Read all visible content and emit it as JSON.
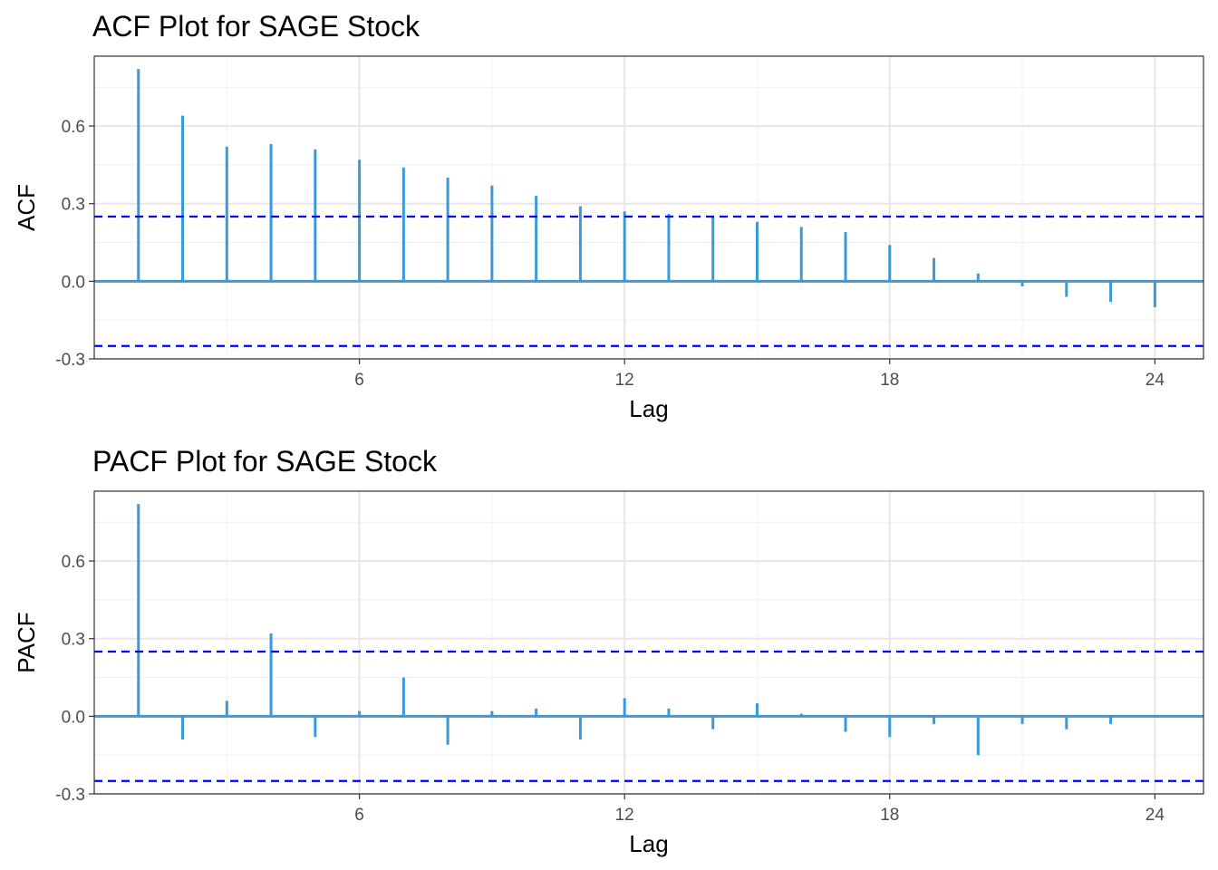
{
  "colors": {
    "bar": "#3a9ad9",
    "confidence_line": "#0000ff",
    "grid_major": "#e6e6e6",
    "grid_minor": "#f2f2f2",
    "panel_border": "#333333"
  },
  "chart_data": [
    {
      "type": "bar",
      "title": "ACF Plot for SAGE Stock",
      "xlabel": "Lag",
      "ylabel": "ACF",
      "xlim": [
        0,
        25.1
      ],
      "ylim": [
        -0.3,
        0.87
      ],
      "xticks": [
        6,
        12,
        18,
        24
      ],
      "xtick_labels": [
        "6",
        "12",
        "18",
        "24"
      ],
      "yticks": [
        -0.3,
        0,
        0.3,
        0.6
      ],
      "ytick_labels": [
        "-0.3",
        "0.0",
        "0.3",
        "0.6"
      ],
      "confidence_bounds": [
        0.25,
        -0.25
      ],
      "grid": true,
      "x": [
        1,
        2,
        3,
        4,
        5,
        6,
        7,
        8,
        9,
        10,
        11,
        12,
        13,
        14,
        15,
        16,
        17,
        18,
        19,
        20,
        21,
        22,
        23,
        24
      ],
      "values": [
        0.82,
        0.64,
        0.52,
        0.53,
        0.51,
        0.47,
        0.44,
        0.4,
        0.37,
        0.33,
        0.29,
        0.27,
        0.26,
        0.25,
        0.23,
        0.21,
        0.19,
        0.14,
        0.09,
        0.03,
        -0.02,
        -0.06,
        -0.08,
        -0.1
      ]
    },
    {
      "type": "bar",
      "title": "PACF Plot for SAGE Stock",
      "xlabel": "Lag",
      "ylabel": "PACF",
      "xlim": [
        0,
        25.1
      ],
      "ylim": [
        -0.3,
        0.87
      ],
      "xticks": [
        6,
        12,
        18,
        24
      ],
      "xtick_labels": [
        "6",
        "12",
        "18",
        "24"
      ],
      "yticks": [
        -0.3,
        0,
        0.3,
        0.6
      ],
      "ytick_labels": [
        "-0.3",
        "0.0",
        "0.3",
        "0.6"
      ],
      "confidence_bounds": [
        0.25,
        -0.25
      ],
      "grid": true,
      "x": [
        1,
        2,
        3,
        4,
        5,
        6,
        7,
        8,
        9,
        10,
        11,
        12,
        13,
        14,
        15,
        16,
        17,
        18,
        19,
        20,
        21,
        22,
        23
      ],
      "values": [
        0.82,
        -0.09,
        0.06,
        0.32,
        -0.08,
        0.02,
        0.15,
        -0.11,
        0.02,
        0.03,
        -0.09,
        0.07,
        0.03,
        -0.05,
        0.05,
        0.01,
        -0.06,
        -0.08,
        -0.03,
        -0.15,
        -0.03,
        -0.05,
        -0.03
      ]
    }
  ]
}
